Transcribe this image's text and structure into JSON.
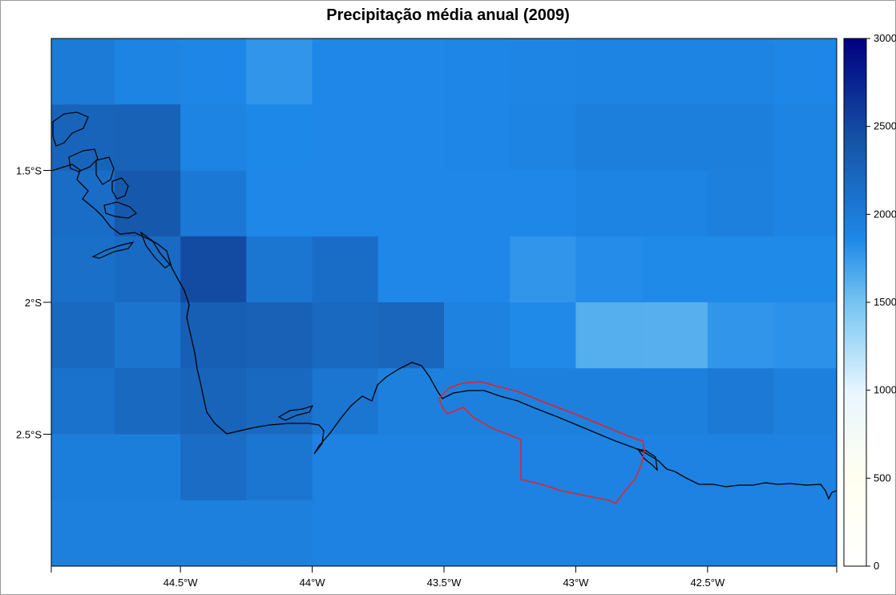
{
  "title": "Precipitação média anual (2009)",
  "map": {
    "lon_range": [
      -44.99,
      -42.01
    ],
    "lat_range": [
      -3.0,
      -1.0
    ],
    "cell_size_deg": 0.25,
    "grid_values": [
      [
        2000,
        1900,
        1880,
        1780,
        1870,
        1870,
        1880,
        1890,
        1900,
        1900,
        1900,
        1880
      ],
      [
        2250,
        2270,
        1900,
        1860,
        1870,
        1870,
        1880,
        1900,
        1960,
        1960,
        1960,
        1900
      ],
      [
        2150,
        2370,
        2030,
        1870,
        1870,
        1870,
        1870,
        1870,
        1900,
        1900,
        1950,
        1900
      ],
      [
        2120,
        2180,
        2480,
        2050,
        2150,
        1870,
        1870,
        1780,
        1830,
        1850,
        1850,
        1850
      ],
      [
        2200,
        2070,
        2300,
        2280,
        2200,
        2230,
        1930,
        1850,
        1630,
        1620,
        1780,
        1800
      ],
      [
        2100,
        2200,
        2250,
        2200,
        2050,
        1950,
        1950,
        1950,
        1950,
        1950,
        2020,
        1950
      ],
      [
        1970,
        1970,
        2160,
        2050,
        1920,
        1920,
        1920,
        1920,
        1920,
        1920,
        1920,
        1920
      ],
      [
        1950,
        1950,
        1950,
        1950,
        1920,
        1920,
        1920,
        1920,
        1920,
        1920,
        1920,
        1920
      ]
    ],
    "x_ticks": [
      {
        "value": -44.5,
        "label": "44.5°W"
      },
      {
        "value": -44.0,
        "label": "44°W"
      },
      {
        "value": -43.5,
        "label": "43.5°W"
      },
      {
        "value": -43.0,
        "label": "43°W"
      },
      {
        "value": -42.5,
        "label": "42.5°W"
      }
    ],
    "y_ticks": [
      {
        "value": -1.5,
        "label": "1.5°S"
      },
      {
        "value": -2.0,
        "label": "2°S"
      },
      {
        "value": -2.5,
        "label": "2.5°S"
      }
    ],
    "coastline_color": "#000000",
    "protected_area_color": "#e8202a"
  },
  "legend": {
    "range": [
      0,
      3000
    ],
    "ticks": [
      {
        "value": 0,
        "label": "0"
      },
      {
        "value": 500,
        "label": "500"
      },
      {
        "value": 1000,
        "label": "1000"
      },
      {
        "value": 1500,
        "label": "1500"
      },
      {
        "value": 2000,
        "label": "2000"
      },
      {
        "value": 2500,
        "label": "2500"
      },
      {
        "value": 3000,
        "label": "3000"
      }
    ],
    "colors": [
      "#ffffff",
      "#fffff0",
      "#e8f6ff",
      "#74c4f0",
      "#1e88e8",
      "#1656a8",
      "#000080"
    ]
  }
}
